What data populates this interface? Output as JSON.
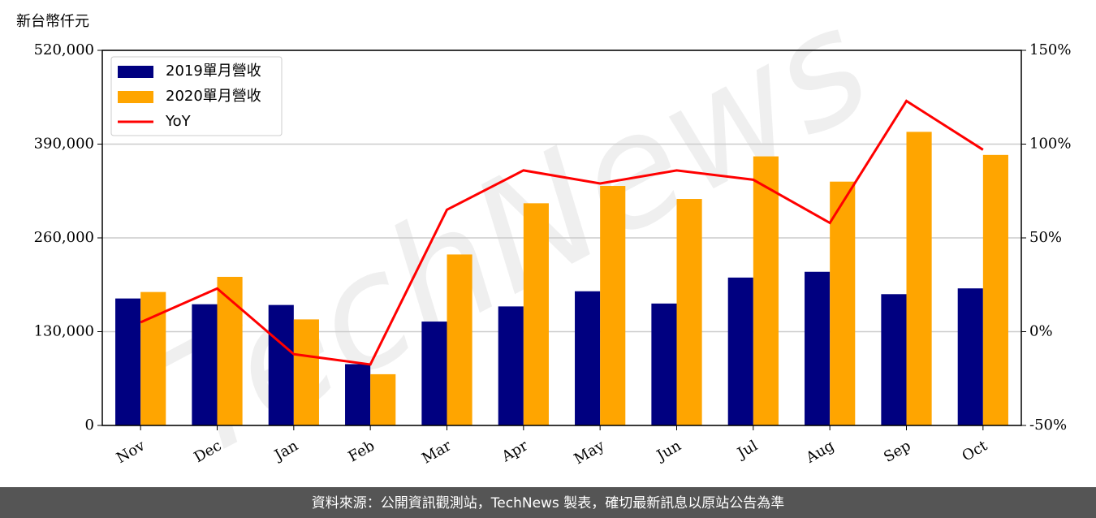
{
  "chart_data": {
    "type": "bar-line",
    "y_label": "新台幣仟元",
    "watermark": "TechNews",
    "footer": "資料來源：公開資訊觀測站，TechNews 製表，確切最新訊息以原站公告為準",
    "categories": [
      "Nov",
      "Dec",
      "Jan",
      "Feb",
      "Mar",
      "Apr",
      "May",
      "Jun",
      "Jul",
      "Aug",
      "Sep",
      "Oct"
    ],
    "series": [
      {
        "name": "2019單月營收",
        "type": "bar",
        "color": "#000080",
        "values": [
          176000,
          168000,
          167000,
          85000,
          144000,
          165000,
          186000,
          169000,
          205000,
          213000,
          182000,
          190000
        ]
      },
      {
        "name": "2020單月營收",
        "type": "bar",
        "color": "#ffa500",
        "values": [
          185000,
          206000,
          147000,
          71000,
          237000,
          308000,
          332000,
          314000,
          373000,
          338000,
          407000,
          375000
        ]
      },
      {
        "name": "YoY",
        "type": "line",
        "axis": "y2",
        "color": "#ff0000",
        "values": [
          5,
          23,
          -12,
          -17.5,
          65,
          86,
          79,
          86,
          81,
          58,
          123,
          97
        ]
      }
    ],
    "ylim": [
      0,
      520000
    ],
    "yticks": [
      0,
      {
        "value": 130000,
        "label": "130,000"
      },
      {
        "value": 260000,
        "label": "260,000"
      },
      {
        "value": 390000,
        "label": "390,000"
      },
      {
        "value": 520000,
        "label": "520,000"
      }
    ],
    "y2lim": [
      -50,
      150
    ],
    "y2ticks": [
      {
        "value": -50,
        "label": "-50%"
      },
      {
        "value": 0,
        "label": "0%"
      },
      {
        "value": 50,
        "label": "50%"
      },
      {
        "value": 100,
        "label": "100%"
      },
      {
        "value": 150,
        "label": "150%"
      }
    ],
    "grid": true,
    "legend": "upper left"
  }
}
